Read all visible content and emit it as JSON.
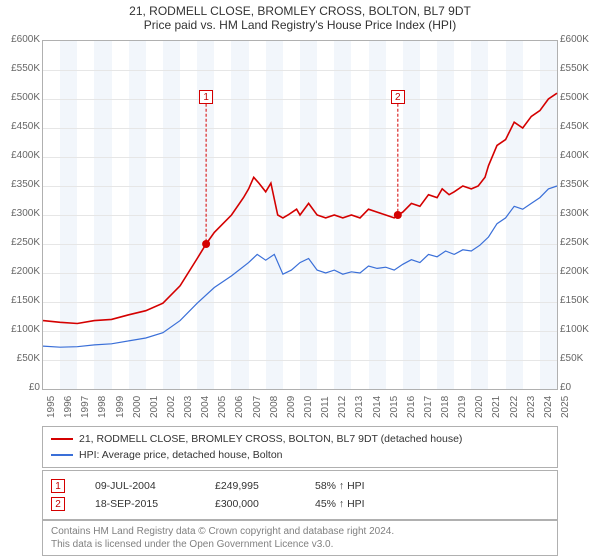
{
  "title": {
    "main": "21, RODMELL CLOSE, BROMLEY CROSS, BOLTON, BL7 9DT",
    "sub": "Price paid vs. HM Land Registry's House Price Index (HPI)"
  },
  "chart": {
    "type": "line",
    "background_color": "#ffffff",
    "zebra_color": "#f2f6fb",
    "grid_color": "#e6e6e6",
    "border_color": "#b0b0b0",
    "x_years": [
      1995,
      1996,
      1997,
      1998,
      1999,
      2000,
      2001,
      2002,
      2003,
      2004,
      2005,
      2006,
      2007,
      2008,
      2009,
      2010,
      2011,
      2012,
      2013,
      2014,
      2015,
      2016,
      2017,
      2018,
      2019,
      2020,
      2021,
      2022,
      2023,
      2024,
      2025
    ],
    "x_tick_fontsize": 10,
    "x_tick_color": "#666666",
    "y_min": 0,
    "y_max": 600000,
    "y_step": 50000,
    "y_format_prefix": "£",
    "y_format_suffix": "K",
    "y_tick_fontsize": 10,
    "y_tick_color": "#666666",
    "series": [
      {
        "id": "property",
        "label": "21, RODMELL CLOSE, BROMLEY CROSS, BOLTON, BL7 9DT (detached house)",
        "color": "#d40000",
        "width": 1.6,
        "points": [
          [
            1995.0,
            118000
          ],
          [
            1996.0,
            115000
          ],
          [
            1997.0,
            113000
          ],
          [
            1998.0,
            118000
          ],
          [
            1999.0,
            120000
          ],
          [
            2000.0,
            128000
          ],
          [
            2001.0,
            135000
          ],
          [
            2002.0,
            148000
          ],
          [
            2003.0,
            178000
          ],
          [
            2004.0,
            225000
          ],
          [
            2004.52,
            249995
          ],
          [
            2005.0,
            270000
          ],
          [
            2006.0,
            300000
          ],
          [
            2006.7,
            330000
          ],
          [
            2007.0,
            345000
          ],
          [
            2007.3,
            365000
          ],
          [
            2007.6,
            355000
          ],
          [
            2008.0,
            340000
          ],
          [
            2008.3,
            355000
          ],
          [
            2008.7,
            300000
          ],
          [
            2009.0,
            295000
          ],
          [
            2009.3,
            300000
          ],
          [
            2009.8,
            310000
          ],
          [
            2010.0,
            300000
          ],
          [
            2010.5,
            320000
          ],
          [
            2011.0,
            300000
          ],
          [
            2011.5,
            295000
          ],
          [
            2012.0,
            300000
          ],
          [
            2012.5,
            295000
          ],
          [
            2013.0,
            300000
          ],
          [
            2013.5,
            295000
          ],
          [
            2014.0,
            310000
          ],
          [
            2014.5,
            305000
          ],
          [
            2015.0,
            300000
          ],
          [
            2015.5,
            295000
          ],
          [
            2015.71,
            300000
          ],
          [
            2016.0,
            305000
          ],
          [
            2016.5,
            320000
          ],
          [
            2017.0,
            315000
          ],
          [
            2017.5,
            335000
          ],
          [
            2018.0,
            330000
          ],
          [
            2018.3,
            345000
          ],
          [
            2018.7,
            335000
          ],
          [
            2019.0,
            340000
          ],
          [
            2019.5,
            350000
          ],
          [
            2020.0,
            345000
          ],
          [
            2020.4,
            350000
          ],
          [
            2020.8,
            365000
          ],
          [
            2021.0,
            385000
          ],
          [
            2021.5,
            420000
          ],
          [
            2022.0,
            430000
          ],
          [
            2022.5,
            460000
          ],
          [
            2023.0,
            450000
          ],
          [
            2023.5,
            470000
          ],
          [
            2024.0,
            480000
          ],
          [
            2024.5,
            500000
          ],
          [
            2025.0,
            510000
          ]
        ]
      },
      {
        "id": "hpi",
        "label": "HPI: Average price, detached house, Bolton",
        "color": "#3a6fd8",
        "width": 1.2,
        "points": [
          [
            1995.0,
            74000
          ],
          [
            1996.0,
            72000
          ],
          [
            1997.0,
            73000
          ],
          [
            1998.0,
            76000
          ],
          [
            1999.0,
            78000
          ],
          [
            2000.0,
            83000
          ],
          [
            2001.0,
            88000
          ],
          [
            2002.0,
            97000
          ],
          [
            2003.0,
            118000
          ],
          [
            2004.0,
            148000
          ],
          [
            2005.0,
            175000
          ],
          [
            2006.0,
            195000
          ],
          [
            2007.0,
            218000
          ],
          [
            2007.5,
            232000
          ],
          [
            2008.0,
            222000
          ],
          [
            2008.5,
            232000
          ],
          [
            2009.0,
            198000
          ],
          [
            2009.5,
            205000
          ],
          [
            2010.0,
            218000
          ],
          [
            2010.5,
            225000
          ],
          [
            2011.0,
            205000
          ],
          [
            2011.5,
            200000
          ],
          [
            2012.0,
            205000
          ],
          [
            2012.5,
            198000
          ],
          [
            2013.0,
            202000
          ],
          [
            2013.5,
            200000
          ],
          [
            2014.0,
            212000
          ],
          [
            2014.5,
            208000
          ],
          [
            2015.0,
            210000
          ],
          [
            2015.5,
            205000
          ],
          [
            2016.0,
            215000
          ],
          [
            2016.5,
            223000
          ],
          [
            2017.0,
            218000
          ],
          [
            2017.5,
            232000
          ],
          [
            2018.0,
            228000
          ],
          [
            2018.5,
            238000
          ],
          [
            2019.0,
            232000
          ],
          [
            2019.5,
            240000
          ],
          [
            2020.0,
            238000
          ],
          [
            2020.5,
            248000
          ],
          [
            2021.0,
            262000
          ],
          [
            2021.5,
            285000
          ],
          [
            2022.0,
            295000
          ],
          [
            2022.5,
            315000
          ],
          [
            2023.0,
            310000
          ],
          [
            2023.5,
            320000
          ],
          [
            2024.0,
            330000
          ],
          [
            2024.5,
            345000
          ],
          [
            2025.0,
            350000
          ]
        ]
      }
    ],
    "sale_markers": [
      {
        "index": "1",
        "x": 2004.52,
        "y": 249995,
        "box_y_top": 0.14,
        "border_color": "#d40000"
      },
      {
        "index": "2",
        "x": 2015.71,
        "y": 300000,
        "box_y_top": 0.14,
        "border_color": "#d40000"
      }
    ],
    "marker_dot_color": "#d40000",
    "marker_dot_radius": 4
  },
  "legend": {
    "rows": [
      {
        "color": "#d40000",
        "height": 2,
        "label": "21, RODMELL CLOSE, BROMLEY CROSS, BOLTON, BL7 9DT (detached house)"
      },
      {
        "color": "#3a6fd8",
        "height": 2,
        "label": "HPI: Average price, detached house, Bolton"
      }
    ]
  },
  "sales": [
    {
      "index": "1",
      "border_color": "#d40000",
      "date": "09-JUL-2004",
      "price": "£249,995",
      "delta": "58% ↑ HPI"
    },
    {
      "index": "2",
      "border_color": "#d40000",
      "date": "18-SEP-2015",
      "price": "£300,000",
      "delta": "45% ↑ HPI"
    }
  ],
  "footer": {
    "line1": "Contains HM Land Registry data © Crown copyright and database right 2024.",
    "line2": "This data is licensed under the Open Government Licence v3.0."
  }
}
